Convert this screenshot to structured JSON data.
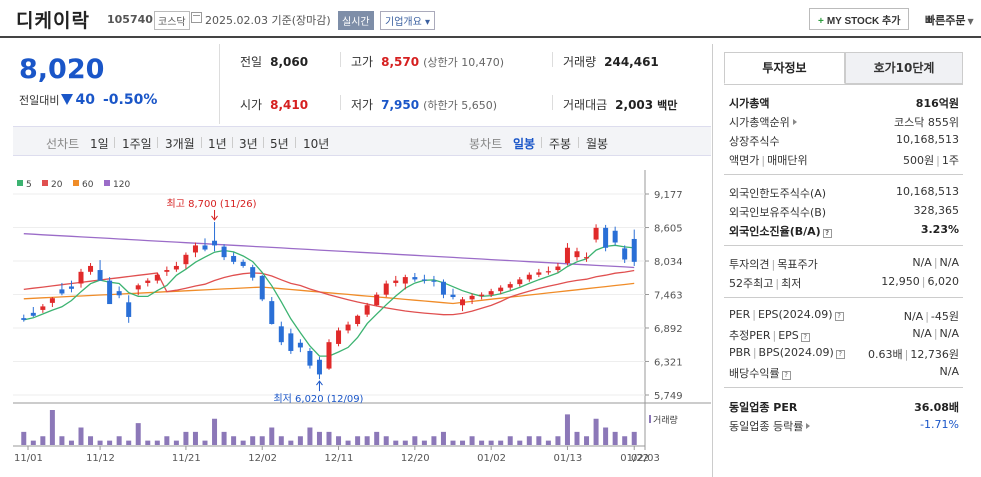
{
  "header": {
    "title": "디케이락",
    "code": "105740",
    "market": "코스닥",
    "date": "2025.02.03 기준(장마감)",
    "realtime": "실시간",
    "overview": "기업개요 ▾",
    "mystock_label": "MY STOCK 추가",
    "quick_order": "빠른주문"
  },
  "price": {
    "current": "8,020",
    "change_label": "전일대비",
    "change_amount": "40",
    "change_pct": "-0.50%"
  },
  "stats": {
    "prev_label": "전일",
    "prev": "8,060",
    "open_label": "시가",
    "open": "8,410",
    "high_label": "고가",
    "high": "8,570",
    "upper_limit": "(상한가 10,470)",
    "low_label": "저가",
    "low": "7,950",
    "lower_limit": "(하한가 5,650)",
    "volume_label": "거래량",
    "volume": "244,461",
    "amount_label": "거래대금",
    "amount": "2,003",
    "amount_unit": "백만"
  },
  "period_tabs": {
    "line_label": "선차트",
    "line_items": [
      "1일",
      "1주일",
      "3개월",
      "1년",
      "3년",
      "5년",
      "10년"
    ],
    "candle_label": "봉차트",
    "candle_items": [
      "일봉",
      "주봉",
      "월봉"
    ],
    "candle_selected": "일봉"
  },
  "chart_data": {
    "type": "candlestick",
    "legend": [
      {
        "name": "5",
        "color": "#3cb371"
      },
      {
        "name": "20",
        "color": "#e05050"
      },
      {
        "name": "60",
        "color": "#f08c28"
      },
      {
        "name": "120",
        "color": "#9b6cc8"
      }
    ],
    "y_ticks": [
      "9,177",
      "8,605",
      "8,034",
      "7,463",
      "6,892",
      "6,321",
      "5,749"
    ],
    "ylim": [
      5749,
      9177
    ],
    "x_ticks": [
      "11/01",
      "11/12",
      "11/21",
      "12/02",
      "12/11",
      "12/20",
      "01/02",
      "01/13",
      "01/22",
      "02/03"
    ],
    "high_annotation": "최고 8,700 (11/26)",
    "low_annotation": "최저 6,020 (12/09)",
    "volume_label": "거래량",
    "up_color": "#e02a2a",
    "down_color": "#2a6fd6"
  },
  "info": {
    "tab_active": "투자정보",
    "tab_inactive": "호가10단계",
    "market_cap_label": "시가총액",
    "market_cap": "816억원",
    "market_cap_rank_label": "시가총액순위",
    "market_cap_rank": "코스닥 855위",
    "shares_label": "상장주식수",
    "shares": "10,168,513",
    "par_label": "액면가",
    "trade_unit_label": "매매단위",
    "par": "500원",
    "trade_unit": "1주",
    "foreign_limit_label": "외국인한도주식수(A)",
    "foreign_limit": "10,168,513",
    "foreign_hold_label": "외국인보유주식수(B)",
    "foreign_hold": "328,365",
    "foreign_ratio_label": "외국인소진율(B/A)",
    "foreign_ratio": "3.23%",
    "opinion_label": "투자의견",
    "target_label": "목표주가",
    "opinion": "N/A",
    "target": "N/A",
    "wk52_high_label": "52주최고",
    "wk52_low_label": "최저",
    "wk52_high": "12,950",
    "wk52_low": "6,020",
    "per_label": "PER",
    "eps_label": "EPS(2024.09)",
    "per": "N/A",
    "eps": "-45원",
    "est_per_label": "추정PER",
    "est_eps_label": "EPS",
    "est_per": "N/A",
    "est_eps": "N/A",
    "pbr_label": "PBR",
    "bps_label": "BPS(2024.09)",
    "pbr": "0.63배",
    "bps": "12,736원",
    "div_label": "배당수익률",
    "div": "N/A",
    "ind_per_label": "동일업종 PER",
    "ind_per": "36.08배",
    "ind_rate_label": "동일업종 등락률",
    "ind_rate": "-1.71%"
  }
}
